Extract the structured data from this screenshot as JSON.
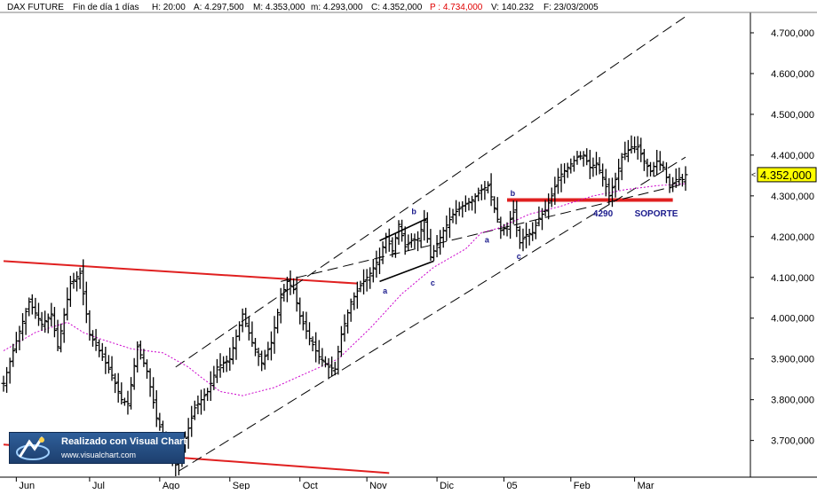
{
  "header": {
    "symbol": "DAX FUTURE",
    "period": "Fin de día 1 días",
    "time": "H: 20:00",
    "open": "A: 4.297,500",
    "high": "M: 4.353,000",
    "low": "m: 4.293,000",
    "close": "C: 4.352,000",
    "p_value": "P : 4.734,000",
    "volume": "V: 140.232",
    "date": "F: 23/03/2005"
  },
  "logo": {
    "title": "Realizado con Visual Chart",
    "url": "www.visualchart.com"
  },
  "chart_data": {
    "type": "candlestick-ohlc",
    "instrument": "DAX FUTURE",
    "timeframe": "daily",
    "ylim": [
      3610,
      4750
    ],
    "yticks": [
      "3.700,000",
      "3.800,000",
      "3.900,000",
      "4.000,000",
      "4.100,000",
      "4.200,000",
      "4.300,000",
      "4.400,000",
      "4.500,000",
      "4.600,000",
      "4.700,000"
    ],
    "ytick_values": [
      3700,
      3800,
      3900,
      4000,
      4100,
      4200,
      4300,
      4400,
      4500,
      4600,
      4700
    ],
    "months": [
      "Jun",
      "Jul",
      "Ago",
      "Sep",
      "Oct",
      "Nov",
      "Dic",
      "05",
      "Feb",
      "Mar"
    ],
    "month_start_index": [
      4,
      27,
      49,
      71,
      93,
      114,
      136,
      157,
      178,
      198
    ],
    "bar_count": 215,
    "last_price_label": "4.352,000",
    "last_price": 4352,
    "colors": {
      "bars": "#000000",
      "moving_average": "#cc00cc",
      "trend_lines": "#e02020",
      "channel": "#000000",
      "annotations": "#1a1a8c",
      "price_tag": "#ffff00"
    },
    "series": [
      {
        "type": "ohlc",
        "key_points": [
          [
            0,
            3840
          ],
          [
            3,
            3920
          ],
          [
            8,
            4040
          ],
          [
            12,
            3985
          ],
          [
            15,
            4010
          ],
          [
            17,
            3930
          ],
          [
            21,
            4085
          ],
          [
            24,
            4110
          ],
          [
            27,
            3960
          ],
          [
            30,
            3920
          ],
          [
            34,
            3860
          ],
          [
            37,
            3800
          ],
          [
            39,
            3790
          ],
          [
            42,
            3930
          ],
          [
            45,
            3870
          ],
          [
            48,
            3755
          ],
          [
            51,
            3690
          ],
          [
            54,
            3640
          ],
          [
            57,
            3705
          ],
          [
            60,
            3780
          ],
          [
            64,
            3820
          ],
          [
            67,
            3880
          ],
          [
            71,
            3900
          ],
          [
            75,
            4010
          ],
          [
            78,
            3940
          ],
          [
            81,
            3890
          ],
          [
            84,
            3940
          ],
          [
            87,
            4050
          ],
          [
            89,
            4090
          ],
          [
            91,
            4070
          ],
          [
            93,
            4005
          ],
          [
            96,
            3950
          ],
          [
            99,
            3905
          ],
          [
            102,
            3880
          ],
          [
            104,
            3875
          ],
          [
            106,
            3960
          ],
          [
            109,
            4040
          ],
          [
            112,
            4080
          ],
          [
            115,
            4110
          ],
          [
            118,
            4150
          ],
          [
            120,
            4200
          ],
          [
            122,
            4165
          ],
          [
            124,
            4230
          ],
          [
            126,
            4175
          ],
          [
            128,
            4190
          ],
          [
            130,
            4195
          ],
          [
            132,
            4240
          ],
          [
            134,
            4150
          ],
          [
            136,
            4180
          ],
          [
            138,
            4215
          ],
          [
            141,
            4255
          ],
          [
            144,
            4275
          ],
          [
            147,
            4290
          ],
          [
            150,
            4315
          ],
          [
            152,
            4325
          ],
          [
            154,
            4270
          ],
          [
            156,
            4215
          ],
          [
            158,
            4225
          ],
          [
            160,
            4260
          ],
          [
            162,
            4185
          ],
          [
            164,
            4205
          ],
          [
            166,
            4210
          ],
          [
            168,
            4245
          ],
          [
            170,
            4265
          ],
          [
            172,
            4300
          ],
          [
            174,
            4345
          ],
          [
            177,
            4370
          ],
          [
            180,
            4395
          ],
          [
            182,
            4400
          ],
          [
            184,
            4370
          ],
          [
            186,
            4380
          ],
          [
            188,
            4345
          ],
          [
            190,
            4300
          ],
          [
            192,
            4340
          ],
          [
            194,
            4395
          ],
          [
            197,
            4420
          ],
          [
            199,
            4420
          ],
          [
            201,
            4385
          ],
          [
            203,
            4360
          ],
          [
            205,
            4385
          ],
          [
            207,
            4370
          ],
          [
            209,
            4320
          ],
          [
            211,
            4340
          ],
          [
            213,
            4340
          ],
          [
            214,
            4352
          ]
        ]
      },
      {
        "type": "moving_average",
        "key_points": [
          [
            0,
            3920
          ],
          [
            10,
            3965
          ],
          [
            20,
            3990
          ],
          [
            25,
            3965
          ],
          [
            30,
            3950
          ],
          [
            40,
            3925
          ],
          [
            50,
            3915
          ],
          [
            58,
            3880
          ],
          [
            62,
            3855
          ],
          [
            68,
            3820
          ],
          [
            75,
            3810
          ],
          [
            85,
            3830
          ],
          [
            95,
            3865
          ],
          [
            105,
            3900
          ],
          [
            115,
            3975
          ],
          [
            125,
            4060
          ],
          [
            135,
            4125
          ],
          [
            145,
            4170
          ],
          [
            150,
            4210
          ],
          [
            155,
            4220
          ],
          [
            165,
            4255
          ],
          [
            175,
            4275
          ],
          [
            185,
            4300
          ],
          [
            195,
            4315
          ],
          [
            205,
            4325
          ],
          [
            214,
            4330
          ]
        ]
      }
    ],
    "lines": [
      {
        "kind": "trend",
        "points": [
          [
            0,
            4140
          ],
          [
            111,
            4085
          ]
        ]
      },
      {
        "kind": "trend",
        "points": [
          [
            0,
            3690
          ],
          [
            121,
            3620
          ]
        ]
      },
      {
        "kind": "support",
        "points": [
          [
            158,
            4290
          ],
          [
            210,
            4290
          ]
        ]
      },
      {
        "kind": "channel",
        "points": [
          [
            54,
            3880
          ],
          [
            214,
            4740
          ]
        ]
      },
      {
        "kind": "channel",
        "points": [
          [
            55,
            3625
          ],
          [
            214,
            4395
          ]
        ]
      },
      {
        "kind": "channel",
        "points": [
          [
            87,
            4090
          ],
          [
            214,
            4330
          ]
        ]
      },
      {
        "kind": "flag",
        "points": [
          [
            118,
            4190
          ],
          [
            133,
            4245
          ]
        ]
      },
      {
        "kind": "flag",
        "points": [
          [
            118,
            4090
          ],
          [
            135,
            4140
          ]
        ]
      }
    ],
    "annotations": [
      {
        "text": "a",
        "x": 119,
        "y": 4060
      },
      {
        "text": "b",
        "x": 128,
        "y": 4255
      },
      {
        "text": "c",
        "x": 134,
        "y": 4080
      },
      {
        "text": "a",
        "x": 151,
        "y": 4185
      },
      {
        "text": "b",
        "x": 159,
        "y": 4300
      },
      {
        "text": "c",
        "x": 161,
        "y": 4145
      },
      {
        "text": "4290",
        "x": 185,
        "y": 4250
      },
      {
        "text": "SOPORTE",
        "x": 198,
        "y": 4250
      }
    ]
  }
}
